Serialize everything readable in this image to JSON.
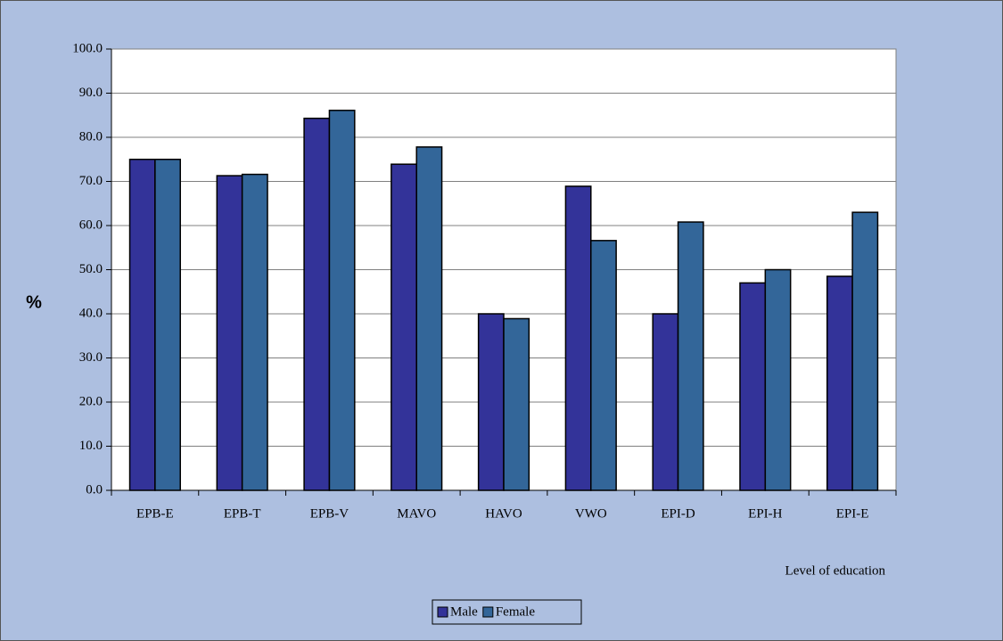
{
  "chart_data": {
    "type": "bar",
    "y_label": "%",
    "x_label": "Level of education",
    "categories": [
      "EPB-E",
      "EPB-T",
      "EPB-V",
      "MAVO",
      "HAVO",
      "VWO",
      "EPI-D",
      "EPI-H",
      "EPI-E"
    ],
    "series": [
      {
        "name": "Male",
        "color": "#333399",
        "values": [
          75.0,
          71.3,
          84.3,
          73.9,
          40.0,
          68.9,
          40.0,
          47.0,
          48.5
        ]
      },
      {
        "name": "Female",
        "color": "#336699",
        "values": [
          75.0,
          71.6,
          86.1,
          77.8,
          38.9,
          56.6,
          60.8,
          50.0,
          63.0
        ]
      }
    ],
    "ylim": [
      0,
      100
    ],
    "yticks": [
      {
        "value": 0,
        "label": "0.0"
      },
      {
        "value": 10,
        "label": "10.0"
      },
      {
        "value": 20,
        "label": "20.0"
      },
      {
        "value": 30,
        "label": "30.0"
      },
      {
        "value": 40,
        "label": "40.0"
      },
      {
        "value": 50,
        "label": "50.0"
      },
      {
        "value": 60,
        "label": "60.0"
      },
      {
        "value": 70,
        "label": "70.0"
      },
      {
        "value": 80,
        "label": "80.0"
      },
      {
        "value": 90,
        "label": "90.0"
      },
      {
        "value": 100,
        "label": "100.0"
      }
    ],
    "grid": true,
    "legend": "bottom"
  }
}
